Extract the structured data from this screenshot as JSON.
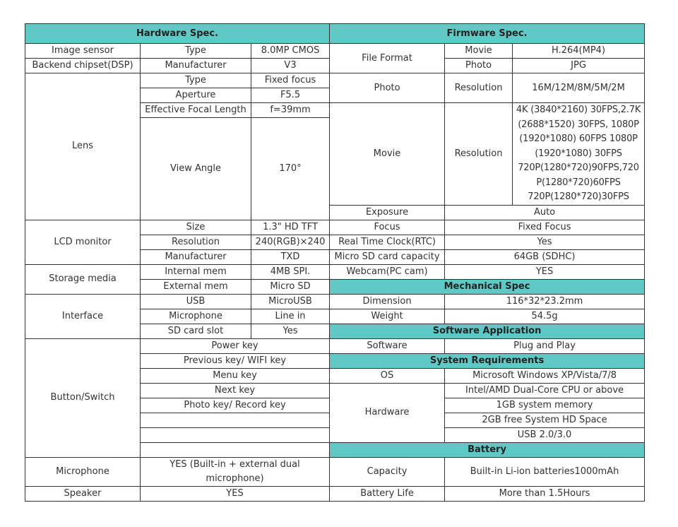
{
  "hardware": {
    "title": "Hardware Spec.",
    "image_sensor": {
      "label": "Image sensor",
      "key": "Type",
      "value": "8.0MP CMOS"
    },
    "dsp": {
      "label": "Backend chipset(DSP)",
      "key": "Manufacturer",
      "value": "V3"
    },
    "lens": {
      "label": "Lens",
      "type": {
        "key": "Type",
        "value": "Fixed focus"
      },
      "aperture": {
        "key": "Aperture",
        "value": "F5.5"
      },
      "focal": {
        "key": "Effective Focal Length",
        "value": "f=39mm"
      },
      "view_angle": {
        "key": "View Angle",
        "value": "170°"
      }
    },
    "lcd": {
      "label": "LCD monitor",
      "size": {
        "key": "Size",
        "value": "1.3\" HD TFT"
      },
      "resolution": {
        "key": "Resolution",
        "value": "240(RGB)×240"
      },
      "manufacturer": {
        "key": "Manufacturer",
        "value": "TXD"
      }
    },
    "storage": {
      "label": "Storage media",
      "internal": {
        "key": "Internal mem",
        "value": "4MB SPI."
      },
      "external": {
        "key": "External mem",
        "value": "Micro SD"
      }
    },
    "interface": {
      "label": "Interface",
      "usb": {
        "key": "USB",
        "value": "MicroUSB"
      },
      "mic": {
        "key": "Microphone",
        "value": "Line in"
      },
      "sd": {
        "key": "SD card slot",
        "value": "Yes"
      }
    },
    "buttons": {
      "label": "Button/Switch",
      "items": [
        "Power key",
        "Previous key/ WIFI key",
        "Menu key",
        "Next key",
        "Photo key/ Record key",
        "",
        "",
        ""
      ]
    },
    "microphone": {
      "label": "Microphone",
      "value": "YES (Built-in + external dual microphone)"
    },
    "speaker": {
      "label": "Speaker",
      "value": "YES"
    }
  },
  "firmware": {
    "title": "Firmware Spec.",
    "file_format": {
      "label": "File Format",
      "movie": {
        "key": "Movie",
        "value": "H.264(MP4)"
      },
      "photo": {
        "key": "Photo",
        "value": "JPG"
      }
    },
    "photo": {
      "label": "Photo",
      "key": "Resolution",
      "value": "16M/12M/8M/5M/2M"
    },
    "movie": {
      "label": "Movie",
      "key": "Resolution",
      "value": "4K (3840*2160) 30FPS,2.7K (2688*1520) 30FPS, 1080P (1920*1080) 60FPS 1080P (1920*1080) 30FPS 720P(1280*720)90FPS,720 P(1280*720)60FPS 720P(1280*720)30FPS"
    },
    "exposure": {
      "label": "Exposure",
      "value": "Auto"
    },
    "focus": {
      "label": "Focus",
      "value": "Fixed Focus"
    },
    "rtc": {
      "label": "Real Time Clock(RTC)",
      "value": "Yes"
    },
    "sd_capacity": {
      "label": "Micro SD card capacity",
      "value": "64GB (SDHC)"
    },
    "webcam": {
      "label": "Webcam(PC cam)",
      "value": "YES"
    }
  },
  "mechanical": {
    "title": "Mechanical Spec",
    "dimension": {
      "label": "Dimension",
      "value": "116*32*23.2mm"
    },
    "weight": {
      "label": "Weight",
      "value": "54.5g"
    }
  },
  "software": {
    "title": "Software Application",
    "software": {
      "label": "Software",
      "value": "Plug and Play"
    }
  },
  "system": {
    "title": "System Requirements",
    "os": {
      "label": "OS",
      "value": "Microsoft Windows XP/Vista/7/8"
    },
    "hardware": {
      "label": "Hardware",
      "items": [
        "Intel/AMD Dual-Core CPU or above",
        "1GB system memory",
        "2GB free System HD Space",
        "USB 2.0/3.0"
      ]
    }
  },
  "battery": {
    "title": "Battery",
    "capacity": {
      "label": "Capacity",
      "value": "Built-in Li-ion batteries1000mAh"
    },
    "life": {
      "label": "Battery Life",
      "value": "More than 1.5Hours"
    }
  },
  "colors": {
    "header_bg": "#5fc9c5",
    "border": "#333333"
  }
}
